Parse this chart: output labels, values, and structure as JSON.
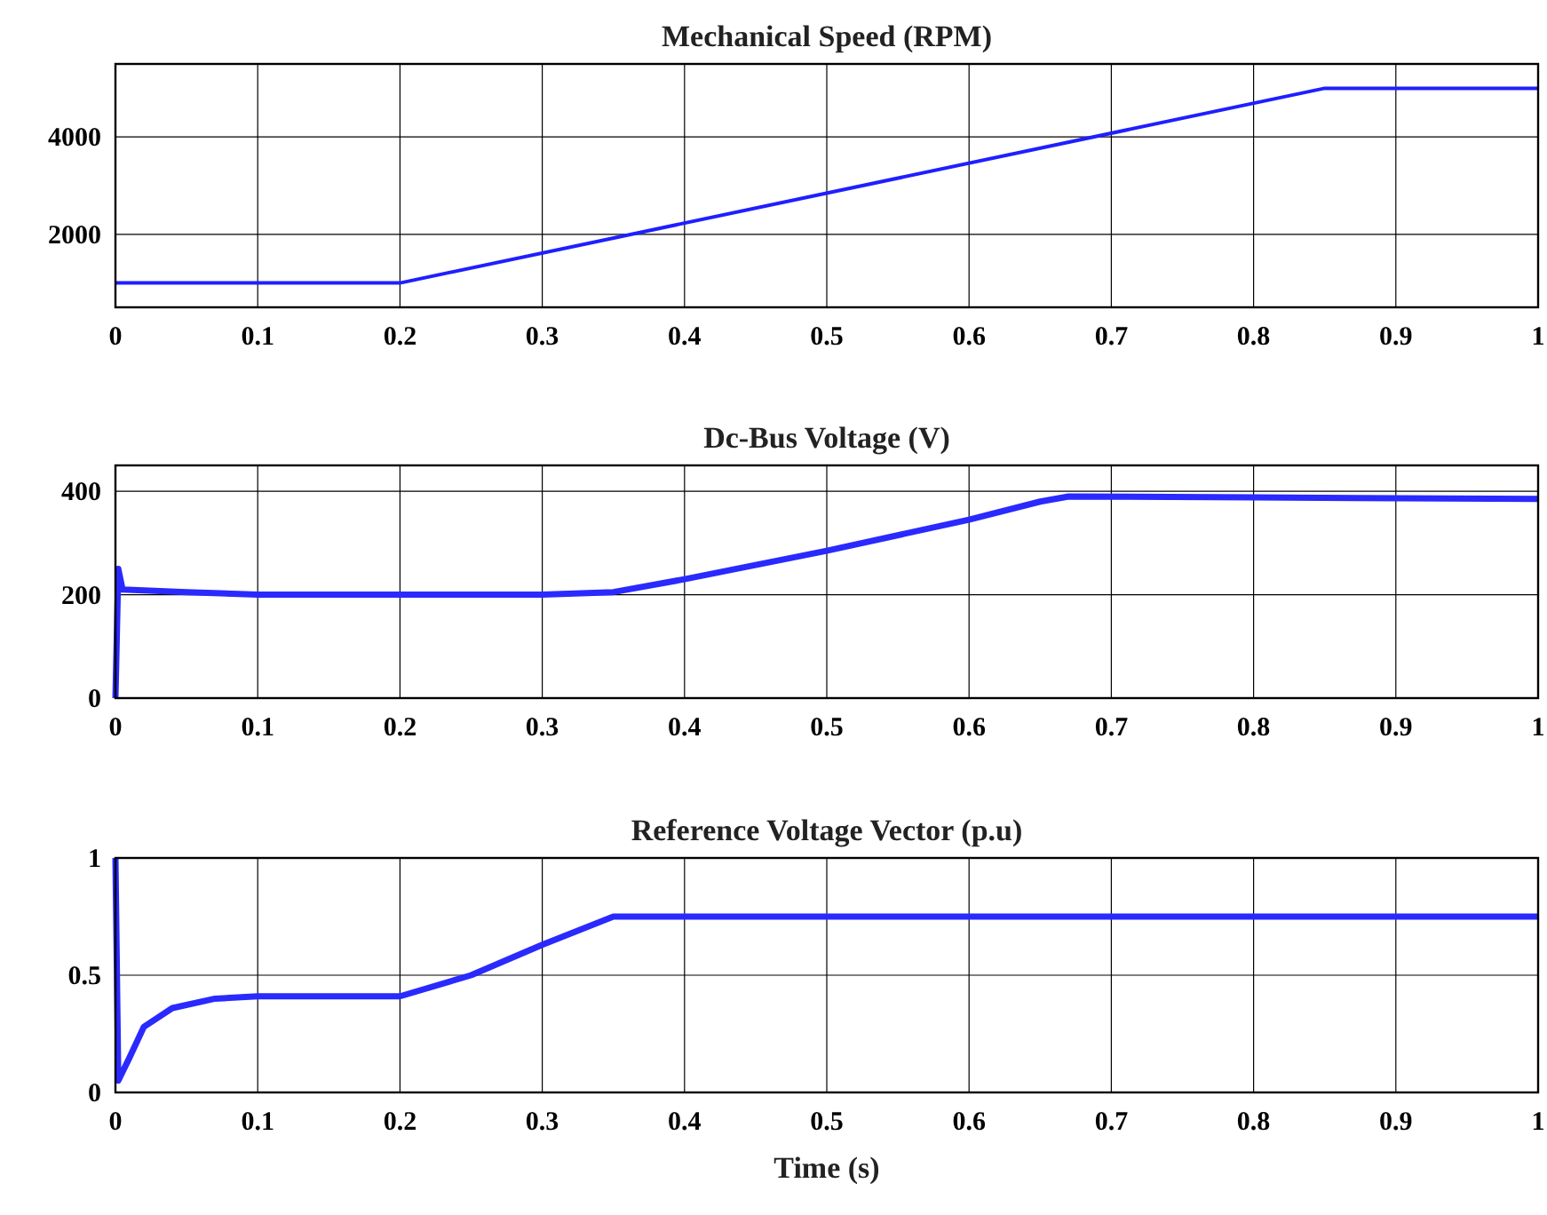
{
  "chart_data": [
    {
      "type": "line",
      "title": "Mechanical Speed (RPM)",
      "x": [
        0,
        0.2,
        0.85,
        1
      ],
      "series": [
        {
          "color": "#1f1fff",
          "values": [
            1000,
            1000,
            5000,
            5000
          ]
        }
      ],
      "xlim": [
        0,
        1
      ],
      "xticks": [
        0,
        0.1,
        0.2,
        0.3,
        0.4,
        0.5,
        0.6,
        0.7,
        0.8,
        0.9,
        1
      ],
      "ylim": [
        500,
        5500
      ],
      "yticks": [
        2000,
        4000
      ],
      "grid": true
    },
    {
      "type": "line",
      "title": "Dc-Bus Voltage (V)",
      "x": [
        0,
        0.002,
        0.005,
        0.05,
        0.1,
        0.3,
        0.35,
        0.4,
        0.5,
        0.6,
        0.65,
        0.67,
        0.8,
        1
      ],
      "series": [
        {
          "color": "#2a2aff",
          "values": [
            0,
            250,
            210,
            205,
            200,
            200,
            205,
            230,
            285,
            345,
            380,
            390,
            388,
            385
          ]
        }
      ],
      "xlim": [
        0,
        1
      ],
      "xticks": [
        0,
        0.1,
        0.2,
        0.3,
        0.4,
        0.5,
        0.6,
        0.7,
        0.8,
        0.9,
        1
      ],
      "ylim": [
        0,
        450
      ],
      "yticks": [
        0,
        200,
        400
      ],
      "grid": true
    },
    {
      "type": "line",
      "title": "Reference Voltage Vector (p.u)",
      "xlabel": "Time (s)",
      "x": [
        0,
        0.002,
        0.01,
        0.02,
        0.04,
        0.07,
        0.1,
        0.2,
        0.25,
        0.3,
        0.35,
        0.6,
        1
      ],
      "series": [
        {
          "color": "#2a2aff",
          "values": [
            1,
            0.05,
            0.15,
            0.28,
            0.36,
            0.4,
            0.41,
            0.41,
            0.5,
            0.63,
            0.75,
            0.75,
            0.75
          ]
        }
      ],
      "xlim": [
        0,
        1
      ],
      "xticks": [
        0,
        0.1,
        0.2,
        0.3,
        0.4,
        0.5,
        0.6,
        0.7,
        0.8,
        0.9,
        1
      ],
      "ylim": [
        0,
        1
      ],
      "yticks": [
        0,
        0.5,
        1
      ],
      "grid": true
    }
  ]
}
